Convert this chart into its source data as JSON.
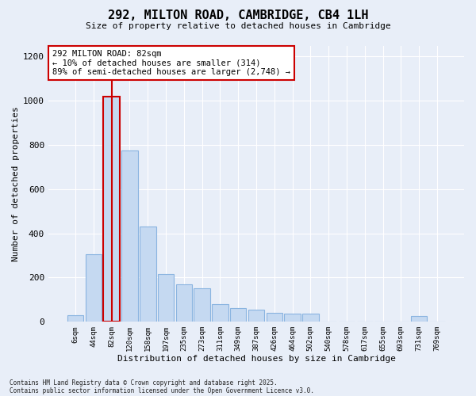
{
  "title": "292, MILTON ROAD, CAMBRIDGE, CB4 1LH",
  "subtitle": "Size of property relative to detached houses in Cambridge",
  "xlabel": "Distribution of detached houses by size in Cambridge",
  "ylabel": "Number of detached properties",
  "categories": [
    "6sqm",
    "44sqm",
    "82sqm",
    "120sqm",
    "158sqm",
    "197sqm",
    "235sqm",
    "273sqm",
    "311sqm",
    "349sqm",
    "387sqm",
    "426sqm",
    "464sqm",
    "502sqm",
    "540sqm",
    "578sqm",
    "617sqm",
    "655sqm",
    "693sqm",
    "731sqm",
    "769sqm"
  ],
  "values": [
    30,
    305,
    1020,
    775,
    430,
    215,
    170,
    150,
    80,
    60,
    55,
    40,
    35,
    35,
    0,
    0,
    0,
    0,
    0,
    25,
    0
  ],
  "bar_color": "#c5d9f1",
  "bar_edge_color": "#8ab4e0",
  "highlight_bar_index": 2,
  "highlight_edge_color": "#cc0000",
  "annotation_text": "292 MILTON ROAD: 82sqm\n← 10% of detached houses are smaller (314)\n89% of semi-detached houses are larger (2,748) →",
  "annotation_box_color": "#ffffff",
  "annotation_box_edge_color": "#cc0000",
  "ylim": [
    0,
    1250
  ],
  "yticks": [
    0,
    200,
    400,
    600,
    800,
    1000,
    1200
  ],
  "background_color": "#e8eef8",
  "grid_color": "#ffffff",
  "footnote1": "Contains HM Land Registry data © Crown copyright and database right 2025.",
  "footnote2": "Contains public sector information licensed under the Open Government Licence v3.0."
}
